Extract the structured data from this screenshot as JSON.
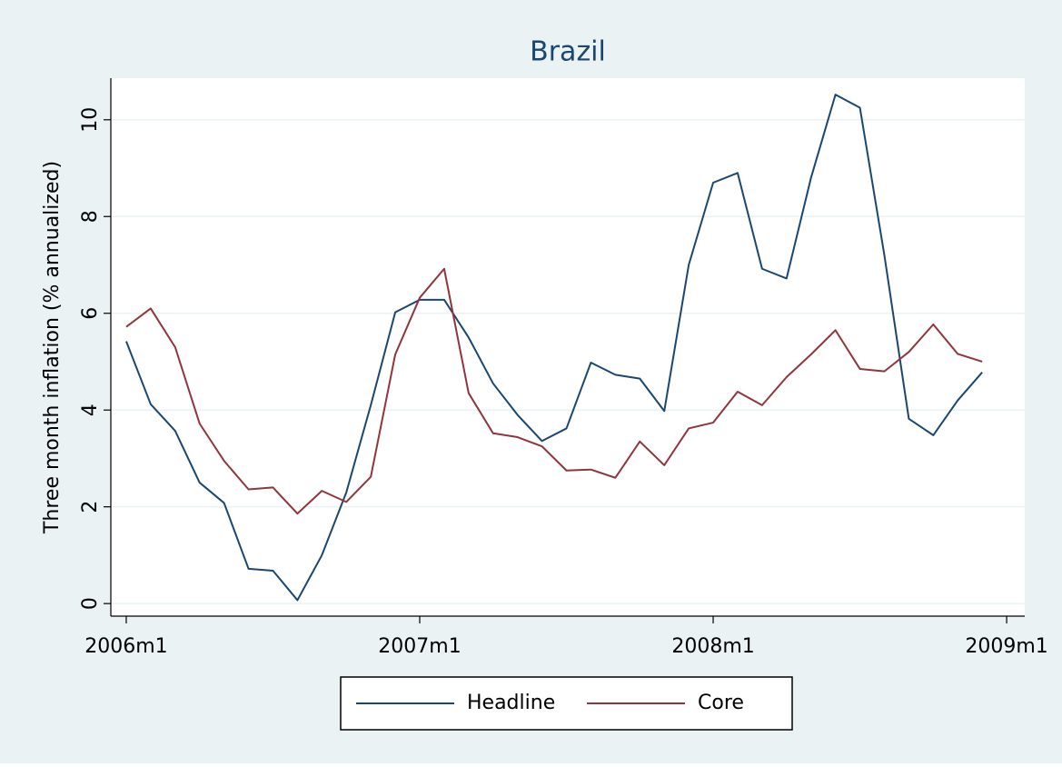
{
  "chart_data": {
    "type": "line",
    "title": "Brazil",
    "ylabel": "Three month inflation (% annualized)",
    "x": [
      552,
      553,
      554,
      555,
      556,
      557,
      558,
      559,
      560,
      561,
      562,
      563,
      564,
      565,
      566,
      567,
      568,
      569,
      570,
      571,
      572,
      573,
      574,
      575,
      576,
      577,
      578,
      579,
      580,
      581,
      582,
      583,
      584,
      585,
      586,
      587
    ],
    "series": [
      {
        "name": "Headline",
        "color": "#1a476f",
        "values": [
          5.42,
          4.12,
          3.57,
          2.5,
          2.08,
          0.72,
          0.68,
          0.07,
          1.0,
          2.3,
          4.1,
          6.02,
          6.28,
          6.28,
          5.5,
          4.55,
          3.9,
          3.36,
          3.62,
          4.98,
          4.73,
          4.65,
          3.98,
          7.0,
          8.7,
          8.9,
          6.92,
          6.72,
          8.8,
          10.52,
          10.25,
          7.2,
          3.82,
          3.48,
          4.2,
          4.78
        ]
      },
      {
        "name": "Core",
        "color": "#90353b",
        "values": [
          5.72,
          6.1,
          5.3,
          3.72,
          2.95,
          2.36,
          2.4,
          1.86,
          2.33,
          2.1,
          2.62,
          5.15,
          6.32,
          6.92,
          4.35,
          3.52,
          3.44,
          3.25,
          2.75,
          2.77,
          2.6,
          3.35,
          2.86,
          3.62,
          3.74,
          4.38,
          4.1,
          4.68,
          5.15,
          5.65,
          4.85,
          4.8,
          5.2,
          5.77,
          5.16,
          5.0
        ]
      }
    ],
    "xlim": [
      551.37,
      588.74
    ],
    "xticks": [
      {
        "value": 552,
        "label": "2006m1"
      },
      {
        "value": 564,
        "label": "2007m1"
      },
      {
        "value": 576,
        "label": "2008m1"
      },
      {
        "value": 588,
        "label": "2009m1"
      }
    ],
    "ylim": [
      -0.26,
      10.86
    ],
    "yticks": [
      0,
      2,
      4,
      6,
      8,
      10
    ],
    "grid": true,
    "legend": "bottom"
  }
}
